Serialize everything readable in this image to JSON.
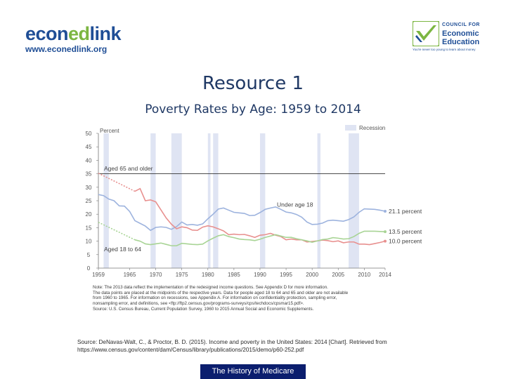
{
  "header": {
    "logo_left_part1": "econ",
    "logo_left_part2": "ed",
    "logo_left_part3": "link",
    "logo_left_url": "www.econedlink.org",
    "logo_right_line1": "COUNCIL FOR",
    "logo_right_line2": "Economic",
    "logo_right_line3": "Education",
    "logo_right_tagline": "You're never too young to learn about money"
  },
  "slide": {
    "title": "Resource 1",
    "subtitle": "Poverty Rates by Age: 1959 to 2014"
  },
  "chart_data": {
    "type": "line",
    "title": "Poverty Rates by Age: 1959 to 2014",
    "ylabel": "Percent",
    "xlabel": "",
    "ylim": [
      0,
      50
    ],
    "xlim": [
      1959,
      2014
    ],
    "yticks": [
      0,
      5,
      10,
      15,
      20,
      25,
      30,
      35,
      40,
      45,
      50
    ],
    "xticks": [
      1959,
      1965,
      1970,
      1975,
      1980,
      1985,
      1990,
      1995,
      2000,
      2005,
      2010,
      2014
    ],
    "legend": "Recession",
    "recession_color": "#dfe4f3",
    "recessions": [
      [
        1960,
        1961
      ],
      [
        1969,
        1970
      ],
      [
        1973,
        1975
      ],
      [
        1980,
        1980.5
      ],
      [
        1981,
        1982
      ],
      [
        1990,
        1991
      ],
      [
        2001,
        2001.6
      ],
      [
        2007,
        2009
      ]
    ],
    "reference_line": 35,
    "annotations": [
      "Aged 65 and older",
      "Under age 18",
      "Aged 18 to 64",
      "21.1 percent",
      "13.5 percent",
      "10.0 percent"
    ],
    "series": [
      {
        "name": "Under age 18",
        "color": "#9db3de",
        "x": [
          1959,
          1960,
          1961,
          1962,
          1963,
          1964,
          1965,
          1966,
          1967,
          1968,
          1969,
          1970,
          1971,
          1972,
          1973,
          1974,
          1975,
          1976,
          1977,
          1978,
          1979,
          1980,
          1981,
          1982,
          1983,
          1984,
          1985,
          1986,
          1987,
          1988,
          1989,
          1990,
          1991,
          1992,
          1993,
          1994,
          1995,
          1996,
          1997,
          1998,
          1999,
          2000,
          2001,
          2002,
          2003,
          2004,
          2005,
          2006,
          2007,
          2008,
          2009,
          2010,
          2011,
          2012,
          2013,
          2014
        ],
        "values": [
          27.3,
          26.9,
          25.6,
          25.0,
          23.1,
          23.0,
          21.0,
          17.6,
          16.6,
          15.6,
          14.0,
          15.1,
          15.3,
          15.1,
          14.4,
          15.4,
          17.1,
          16.0,
          16.2,
          15.9,
          16.4,
          18.3,
          20.0,
          21.9,
          22.3,
          21.5,
          20.7,
          20.5,
          20.3,
          19.5,
          19.6,
          20.6,
          21.8,
          22.3,
          22.7,
          21.8,
          20.8,
          20.5,
          19.9,
          18.9,
          17.1,
          16.2,
          16.3,
          16.7,
          17.6,
          17.8,
          17.6,
          17.4,
          18.0,
          19.0,
          20.7,
          22.0,
          21.9,
          21.8,
          21.5,
          21.1
        ]
      },
      {
        "name": "Aged 65 and older",
        "color": "#e8908f",
        "x": [
          1959,
          1966,
          1967,
          1968,
          1969,
          1970,
          1971,
          1972,
          1973,
          1974,
          1975,
          1976,
          1977,
          1978,
          1979,
          1980,
          1981,
          1982,
          1983,
          1984,
          1985,
          1986,
          1987,
          1988,
          1989,
          1990,
          1991,
          1992,
          1993,
          1994,
          1995,
          1996,
          1997,
          1998,
          1999,
          2000,
          2001,
          2002,
          2003,
          2004,
          2005,
          2006,
          2007,
          2008,
          2009,
          2010,
          2011,
          2012,
          2013,
          2014
        ],
        "values": [
          35.2,
          28.5,
          29.5,
          25.0,
          25.3,
          24.6,
          21.6,
          18.6,
          16.3,
          14.6,
          15.3,
          15.0,
          14.1,
          14.0,
          15.2,
          15.7,
          15.3,
          14.6,
          13.8,
          12.4,
          12.6,
          12.4,
          12.5,
          12.0,
          11.4,
          12.2,
          12.4,
          12.9,
          12.2,
          11.7,
          10.5,
          10.8,
          10.5,
          10.5,
          9.7,
          9.9,
          10.1,
          10.4,
          10.2,
          9.8,
          10.1,
          9.4,
          9.7,
          9.7,
          8.9,
          8.9,
          8.7,
          9.1,
          9.5,
          10.0
        ]
      },
      {
        "name": "Aged 18 to 64",
        "color": "#a8d495",
        "x": [
          1959,
          1966,
          1967,
          1968,
          1969,
          1970,
          1971,
          1972,
          1973,
          1974,
          1975,
          1976,
          1977,
          1978,
          1979,
          1980,
          1981,
          1982,
          1983,
          1984,
          1985,
          1986,
          1987,
          1988,
          1989,
          1990,
          1991,
          1992,
          1993,
          1994,
          1995,
          1996,
          1997,
          1998,
          1999,
          2000,
          2001,
          2002,
          2003,
          2004,
          2005,
          2006,
          2007,
          2008,
          2009,
          2010,
          2011,
          2012,
          2013,
          2014
        ],
        "values": [
          17.0,
          10.5,
          10.0,
          9.0,
          8.7,
          9.0,
          9.3,
          8.8,
          8.3,
          8.3,
          9.2,
          9.0,
          8.8,
          8.7,
          8.9,
          10.1,
          11.1,
          12.0,
          12.4,
          11.7,
          11.3,
          10.8,
          10.6,
          10.5,
          10.2,
          10.7,
          11.4,
          11.9,
          12.4,
          11.9,
          11.4,
          11.4,
          10.9,
          10.5,
          10.1,
          9.6,
          10.1,
          10.6,
          10.8,
          11.3,
          11.1,
          10.8,
          10.9,
          11.7,
          12.9,
          13.7,
          13.7,
          13.7,
          13.6,
          13.5
        ]
      }
    ]
  },
  "notes": {
    "line1": "Note: The 2013 data reflect the implementation of the redesigned income questions. See Appendix D for more information.",
    "line2": "The data points are placed at the midpoints of the respective years. Data for people aged 18 to 64 and 65 and older are not available",
    "line3": "from 1960 to 1965. For information on recessions, see Appendix A. For information on confidentiality protection, sampling error,",
    "line4": "nonsampling error, and definitions, see <ftp://ftp2.census.gov/programs-surveys/cps/techdocs/cpsmar15.pdf>.",
    "line5": "Source: U.S. Census Bureau, Current Population Survey, 1960 to 2015 Annual Social and Economic Supplements."
  },
  "source": {
    "line1": "Source: DeNavas-Walt, C., & Proctor, B. D. (2015). Income and poverty in the United States: 2014 [Chart]. Retrieved from",
    "line2": "https://www.census.gov/content/dam/Census/library/publications/2015/demo/p60-252.pdf"
  },
  "footer": {
    "label": "The History of Medicare"
  }
}
